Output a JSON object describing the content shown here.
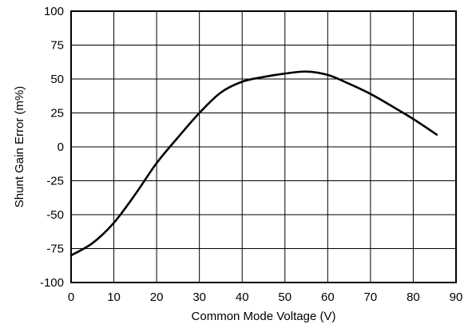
{
  "chart_data": {
    "type": "line",
    "title": "",
    "xlabel": "Common Mode Voltage (V)",
    "ylabel": "Shunt Gain Error (m%)",
    "xlim": [
      0,
      90
    ],
    "ylim": [
      -100,
      100
    ],
    "xticks": [
      "0",
      "10",
      "20",
      "30",
      "40",
      "50",
      "60",
      "70",
      "80",
      "90"
    ],
    "yticks": [
      "100",
      "75",
      "50",
      "25",
      "0",
      "-25",
      "-50",
      "-75",
      "-100"
    ],
    "grid": true,
    "legend": "none",
    "series": [
      {
        "color": "#000000",
        "x": [
          0,
          5,
          10,
          15,
          20,
          25,
          30,
          35,
          40,
          45,
          50,
          55,
          60,
          65,
          70,
          75,
          80,
          85.5
        ],
        "y": [
          -80,
          -71,
          -56,
          -35,
          -12,
          7,
          25,
          40,
          48,
          51.5,
          54,
          55.5,
          53,
          46.5,
          39,
          30,
          20.5,
          9
        ]
      }
    ]
  }
}
